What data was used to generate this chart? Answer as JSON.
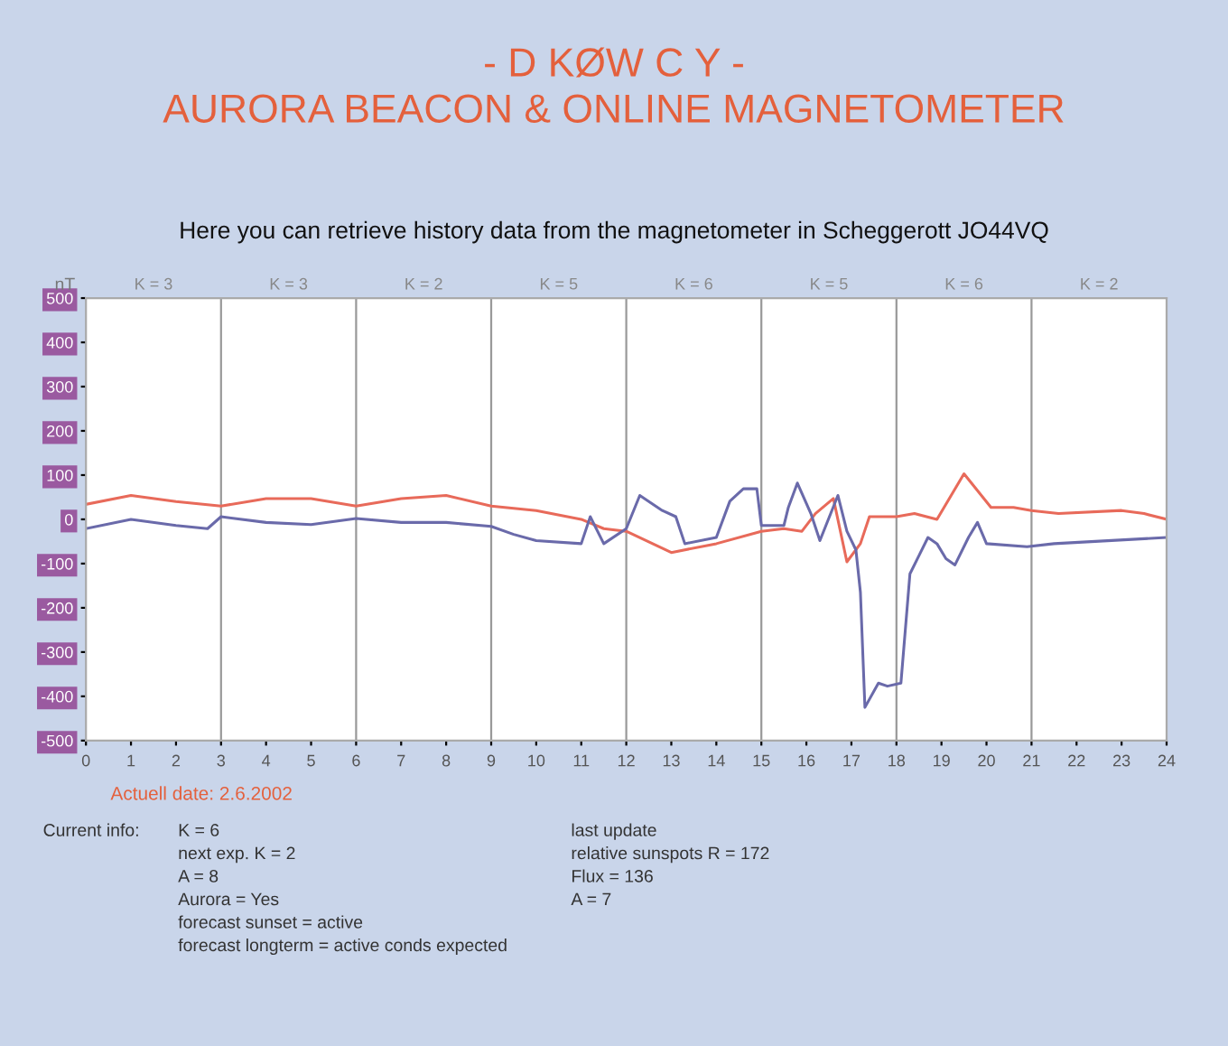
{
  "chart_data": {
    "type": "line",
    "title": "- D KØW C Y -\nAURORA BEACON & ONLINE MAGNETOMETER",
    "subtitle": "Here you can retrieve history data from the magnetometer in Scheggerott JO44VQ",
    "ylabel": "nT",
    "xlim": [
      0,
      24
    ],
    "xticks": [
      0,
      1,
      2,
      3,
      4,
      5,
      6,
      7,
      8,
      9,
      10,
      11,
      12,
      13,
      14,
      15,
      16,
      17,
      18,
      19,
      20,
      21,
      22,
      23,
      24
    ],
    "ylim": [
      -500,
      500
    ],
    "yticks": [
      -500,
      -400,
      -300,
      -200,
      -100,
      0,
      100,
      200,
      300,
      400,
      500
    ],
    "grid": false,
    "marker": "none",
    "line_style": "solid",
    "ref_lines": [
      {
        "axis": "x",
        "value": 3,
        "color": "#999999"
      },
      {
        "axis": "x",
        "value": 6,
        "color": "#999999"
      },
      {
        "axis": "x",
        "value": 9,
        "color": "#999999"
      },
      {
        "axis": "x",
        "value": 12,
        "color": "#999999"
      },
      {
        "axis": "x",
        "value": 15,
        "color": "#999999"
      },
      {
        "axis": "x",
        "value": 18,
        "color": "#999999"
      },
      {
        "axis": "x",
        "value": 21,
        "color": "#999999"
      }
    ],
    "series": [
      {
        "color": "#e86a5a",
        "x": [
          0,
          1,
          2,
          3,
          4,
          5,
          6,
          7,
          8,
          9,
          10,
          11,
          11.5,
          12,
          13,
          14,
          15,
          15.5,
          15.9,
          16.2,
          16.6,
          16.9,
          17.2,
          17.4,
          18,
          18.4,
          18.9,
          19.5,
          20.1,
          20.6,
          21,
          21.6,
          23,
          23.5,
          24
        ],
        "values": [
          34,
          54,
          40,
          30,
          47,
          47,
          30,
          47,
          54,
          30,
          20,
          0,
          -21,
          -27,
          -75,
          -55,
          -27,
          -21,
          -27,
          13,
          47,
          -96,
          -55,
          6,
          6,
          13,
          0,
          103,
          27,
          27,
          20,
          13,
          20,
          13,
          0
        ]
      },
      {
        "color": "#6a6aaa",
        "x": [
          0,
          1,
          2,
          2.7,
          3,
          4,
          5,
          6,
          7,
          8,
          9,
          9.5,
          10,
          11,
          11.2,
          11.5,
          12,
          12.3,
          12.8,
          13.1,
          13.3,
          14,
          14.3,
          14.6,
          14.9,
          15,
          15.5,
          15.6,
          15.8,
          16.1,
          16.3,
          16.7,
          16.9,
          17.1,
          17.2,
          17.3,
          17.6,
          17.8,
          18.1,
          18.3,
          18.7,
          18.9,
          19.1,
          19.3,
          19.6,
          19.8,
          20,
          20.9,
          21.5,
          24
        ],
        "values": [
          -21,
          0,
          -14,
          -21,
          6,
          -7,
          -12,
          2,
          -7,
          -7,
          -16,
          -34,
          -48,
          -55,
          6,
          -55,
          -21,
          54,
          20,
          6,
          -55,
          -41,
          41,
          69,
          69,
          -14,
          -14,
          27,
          82,
          13,
          -48,
          54,
          -27,
          -69,
          -165,
          -425,
          -370,
          -377,
          -370,
          -123,
          -41,
          -55,
          -89,
          -103,
          -41,
          -7,
          -55,
          -62,
          -55,
          -41
        ]
      }
    ],
    "annotations": [
      "K = 3",
      "K = 3",
      "K = 2",
      "K = 5",
      "K = 6",
      "K = 5",
      "K = 6",
      "K = 2",
      "Actuell date: 2.6.2002",
      "Current info:",
      "K = 6",
      "next exp. K = 2",
      "A = 8",
      "Aurora = Yes",
      "forecast sunset = active",
      "forecast longterm = active conds expected",
      "last update",
      "relative sunspots R = 172",
      "Flux = 136",
      "A = 7"
    ]
  }
}
